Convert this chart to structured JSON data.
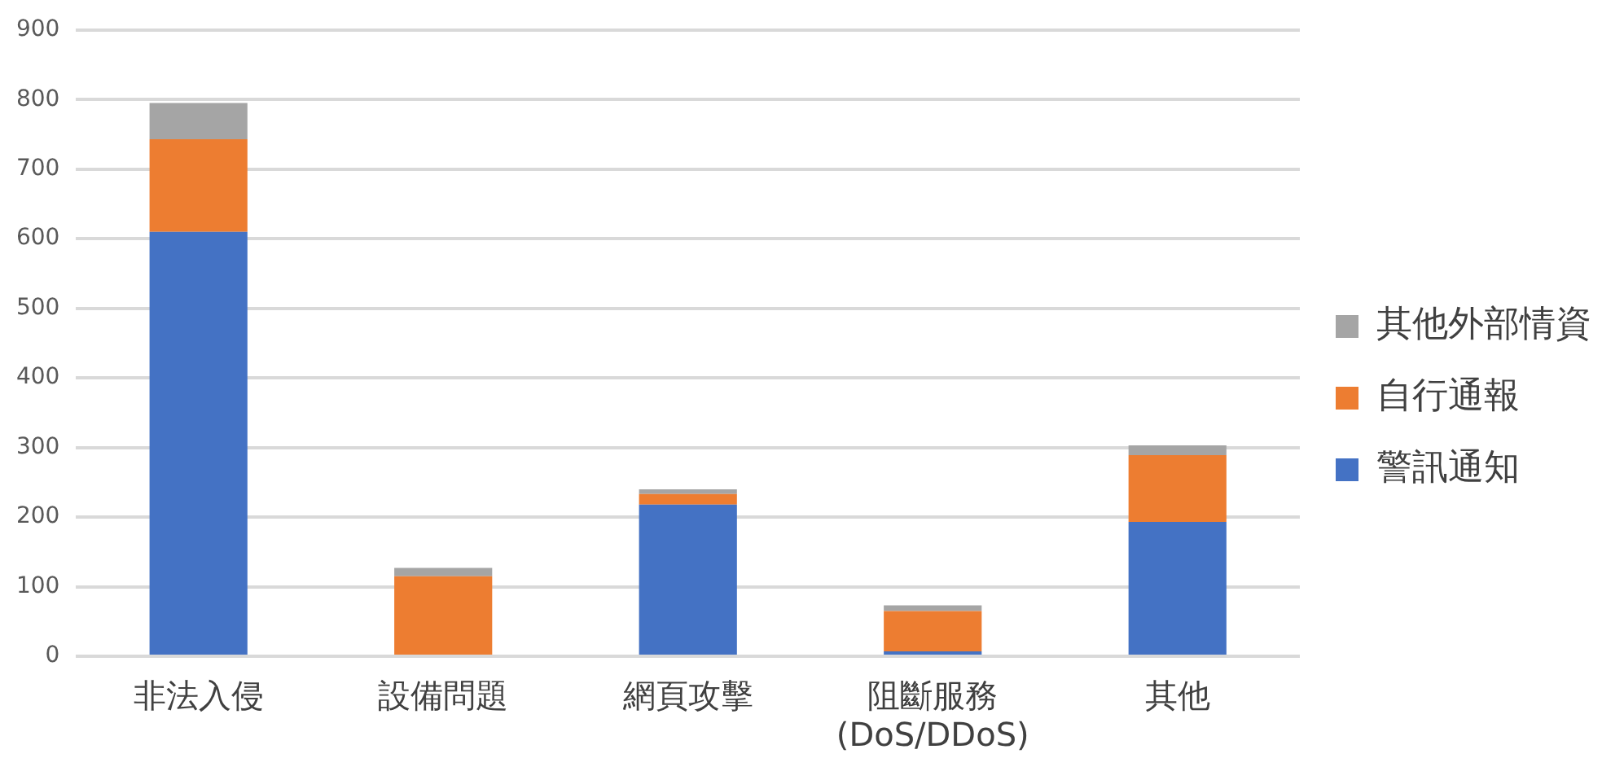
{
  "chart_data": {
    "type": "bar",
    "stacked": true,
    "categories": [
      "非法入侵",
      "設備問題",
      "網頁攻擊",
      "阻斷服務 (DoS/DDoS)",
      "其他"
    ],
    "series": [
      {
        "name": "警訊通知",
        "color": "#4472c4",
        "values": [
          610,
          0,
          218,
          7,
          193
        ]
      },
      {
        "name": "自行通報",
        "color": "#ed7d31",
        "values": [
          133,
          115,
          15,
          58,
          96
        ]
      },
      {
        "name": "其他外部情資",
        "color": "#a5a5a5",
        "values": [
          52,
          12,
          7,
          8,
          14
        ]
      }
    ],
    "ylim": [
      0,
      900
    ],
    "yticks": [
      0,
      100,
      200,
      300,
      400,
      500,
      600,
      700,
      800,
      900
    ],
    "grid": "y",
    "legend": "right"
  }
}
